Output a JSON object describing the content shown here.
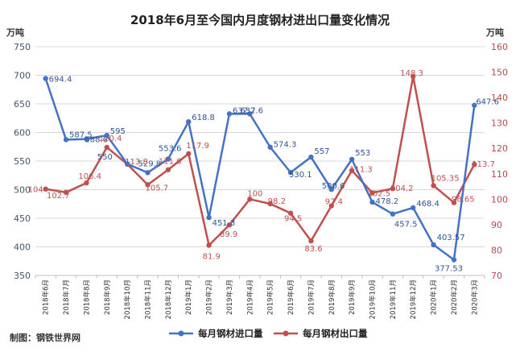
{
  "chart_data": {
    "type": "line",
    "title": "2018年6月至今国内月度钢材进出口量变化情况",
    "left_unit": "万吨",
    "right_unit": "万吨",
    "categories": [
      "2018年6月",
      "2018年7月",
      "2018年8月",
      "2018年9月",
      "2018年10月",
      "2018年11月",
      "2018年12月",
      "2019年1月",
      "2019年2月",
      "2019年3月",
      "2019年4月",
      "2019年5月",
      "2019年6月",
      "2019年7月",
      "2019年8月",
      "2019年9月",
      "2019年10月",
      "2019年11月",
      "2019年12月",
      "2020年1月",
      "2020年2月",
      "2020年3月"
    ],
    "left_axis": {
      "min": 350,
      "max": 750,
      "step": 50,
      "ticks": [
        "350",
        "400",
        "450",
        "500",
        "550",
        "600",
        "650",
        "700",
        "750"
      ]
    },
    "right_axis": {
      "min": 70,
      "max": 160,
      "step": 10,
      "ticks": [
        "70",
        "80",
        "90",
        "100",
        "110",
        "120",
        "130",
        "140",
        "150",
        "160"
      ]
    },
    "series": [
      {
        "name": "每月钢材进口量",
        "axis": "left",
        "color": "#4472c4",
        "values": [
          694.4,
          587.5,
          588.6,
          595,
          545,
          529.8,
          553.6,
          618.8,
          451.3,
          632.7,
          632.6,
          574.3,
          530.1,
          557,
          500.6,
          553,
          478.2,
          457.5,
          468.4,
          403.57,
          377.53,
          647.6
        ],
        "labels": [
          "694.4",
          "587.5",
          "588.6",
          "595",
          "",
          "529.8",
          "553.6",
          "618.8",
          "451.3",
          "632.7",
          "632.6",
          "574.3",
          "530.1",
          "557",
          "500.6",
          "553",
          "478.2",
          "457.5",
          "468.4",
          "403.57",
          "377.53",
          "647.6"
        ]
      },
      {
        "name": "每月钢材出口量",
        "axis": "right",
        "color": "#c0504d",
        "values": [
          104,
          102.7,
          106.4,
          120.4,
          113.8,
          105.7,
          111.6,
          117.9,
          81.9,
          89.9,
          100,
          98.2,
          94.5,
          83.6,
          97.4,
          111.3,
          102.5,
          104.2,
          148.3,
          105.35,
          98.65,
          113.7
        ],
        "labels": [
          "104",
          "102.7",
          "106.4",
          "120.4",
          "113.8",
          "105.7",
          "111.6",
          "117.9",
          "81.9",
          "89.9",
          "100",
          "98.2",
          "94.5",
          "83.6",
          "97.4",
          "111.3",
          "102.5",
          "104.2",
          "148.3",
          "105.35",
          "98.65",
          "113.7"
        ]
      }
    ],
    "extra_labels": [
      "550"
    ],
    "legend_position": "bottom-center",
    "source": "制图：钢铁世界网"
  }
}
